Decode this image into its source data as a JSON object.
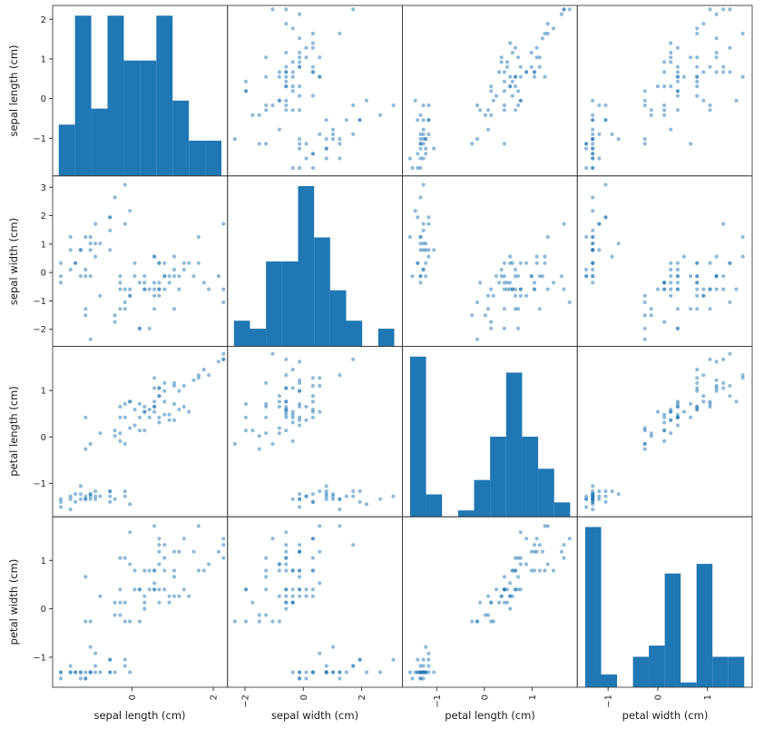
{
  "chart_data": {
    "type": "scatter_matrix",
    "description": "4x4 pairwise scatter-plot matrix of standardized iris features; diagonal cells show histograms of each variable",
    "grid": false,
    "legend": "none",
    "marker_color": "#1f77b4",
    "marker_alpha": 0.5,
    "hist_color": "#1f77b4",
    "spine_color": "#3d3d3d",
    "tick_color": "#262626",
    "background": "#ffffff",
    "variables": [
      {
        "name": "sepal length (cm)",
        "lim": [
          -1.95,
          2.35
        ],
        "yticks": [
          2,
          1,
          0,
          -1
        ],
        "xticks": [
          0,
          2
        ],
        "hist": {
          "range": [
            -1.8,
            2.2
          ],
          "rel_heights": [
            0.32,
            1.0,
            0.42,
            1.0,
            0.72,
            0.72,
            1.0,
            0.47,
            0.22,
            0.22
          ]
        }
      },
      {
        "name": "sepal width (cm)",
        "lim": [
          -2.6,
          3.4
        ],
        "yticks": [
          3,
          2,
          1,
          0,
          -1,
          -2
        ],
        "xticks": [
          -2,
          0,
          2
        ],
        "hist": {
          "range": [
            -2.38,
            3.12
          ],
          "rel_heights": [
            0.16,
            0.11,
            0.53,
            0.53,
            1.0,
            0.68,
            0.35,
            0.16,
            0.0,
            0.11
          ]
        }
      },
      {
        "name": "petal length (cm)",
        "lim": [
          -1.72,
          1.95
        ],
        "yticks": [
          1,
          0,
          -1
        ],
        "xticks": [
          -1,
          0,
          1
        ],
        "hist": {
          "range": [
            -1.56,
            1.8
          ],
          "rel_heights": [
            1.0,
            0.14,
            0.0,
            0.04,
            0.23,
            0.5,
            0.9,
            0.5,
            0.3,
            0.09
          ]
        }
      },
      {
        "name": "petal width (cm)",
        "lim": [
          -1.62,
          1.9
        ],
        "yticks": [
          1,
          0,
          -1
        ],
        "xticks": [
          -1,
          0,
          1
        ],
        "hist": {
          "range": [
            -1.46,
            1.74
          ],
          "rel_heights": [
            1.0,
            0.08,
            0.0,
            0.19,
            0.26,
            0.71,
            0.03,
            0.77,
            0.19,
            0.19
          ]
        }
      }
    ],
    "points": [
      [
        -0.9,
        1.02,
        -1.34,
        -1.31
      ],
      [
        -1.14,
        -0.13,
        -1.34,
        -1.31
      ],
      [
        -1.39,
        0.33,
        -1.4,
        -1.31
      ],
      [
        -1.51,
        0.1,
        -1.28,
        -1.31
      ],
      [
        -1.02,
        1.25,
        -1.34,
        -1.31
      ],
      [
        -0.54,
        1.94,
        -1.17,
        -1.05
      ],
      [
        -1.51,
        0.79,
        -1.34,
        -1.18
      ],
      [
        -1.02,
        0.79,
        -1.28,
        -1.31
      ],
      [
        -1.75,
        -0.36,
        -1.34,
        -1.31
      ],
      [
        -1.14,
        0.1,
        -1.28,
        -1.44
      ],
      [
        -0.54,
        1.48,
        -1.28,
        -1.31
      ],
      [
        -1.26,
        0.79,
        -1.23,
        -1.31
      ],
      [
        -1.26,
        -0.13,
        -1.34,
        -1.44
      ],
      [
        -1.75,
        -0.13,
        -1.51,
        -1.44
      ],
      [
        -0.05,
        2.17,
        -1.45,
        -1.31
      ],
      [
        -0.17,
        3.09,
        -1.28,
        -1.05
      ],
      [
        -0.54,
        1.94,
        -1.4,
        -1.05
      ],
      [
        -0.17,
        1.71,
        -1.17,
        -1.18
      ],
      [
        -0.9,
        1.71,
        -1.28,
        -1.18
      ],
      [
        -0.54,
        0.79,
        -1.17,
        -1.31
      ],
      [
        -1.51,
        1.25,
        -1.56,
        -1.31
      ],
      [
        -0.9,
        0.56,
        -1.17,
        -0.92
      ],
      [
        -1.26,
        0.79,
        -1.06,
        -1.31
      ],
      [
        -1.02,
        -0.13,
        -1.23,
        -1.31
      ],
      [
        -0.78,
        1.02,
        -1.28,
        -1.31
      ],
      [
        -1.39,
        0.33,
        -1.23,
        -1.31
      ],
      [
        -0.42,
        2.64,
        -1.34,
        -1.31
      ],
      [
        -1.14,
        1.25,
        -1.34,
        -1.44
      ],
      [
        -1.75,
        0.33,
        -1.4,
        -1.31
      ],
      [
        -1.02,
        1.02,
        -1.23,
        -0.79
      ],
      [
        1.4,
        0.33,
        0.54,
        0.26
      ],
      [
        0.67,
        0.33,
        0.42,
        0.4
      ],
      [
        1.28,
        0.1,
        0.65,
        0.4
      ],
      [
        -0.42,
        -1.74,
        0.14,
        0.13
      ],
      [
        0.8,
        -0.59,
        0.48,
        0.4
      ],
      [
        -0.17,
        -0.59,
        0.42,
        0.13
      ],
      [
        0.55,
        0.56,
        0.54,
        0.53
      ],
      [
        -1.14,
        -1.51,
        -0.26,
        -0.26
      ],
      [
        0.92,
        -0.36,
        0.48,
        0.13
      ],
      [
        -0.78,
        -0.82,
        0.08,
        0.26
      ],
      [
        -1.02,
        -2.35,
        -0.15,
        -0.26
      ],
      [
        0.07,
        -0.13,
        0.25,
        0.4
      ],
      [
        0.19,
        -1.97,
        0.14,
        -0.26
      ],
      [
        0.31,
        -0.36,
        0.54,
        0.26
      ],
      [
        -0.29,
        -0.36,
        -0.09,
        0.13
      ],
      [
        1.04,
        0.1,
        0.36,
        0.26
      ],
      [
        -0.29,
        -0.13,
        0.42,
        0.4
      ],
      [
        -0.05,
        -0.82,
        0.19,
        -0.26
      ],
      [
        0.43,
        -1.97,
        0.42,
        0.4
      ],
      [
        -0.29,
        -1.28,
        0.08,
        -0.13
      ],
      [
        0.07,
        0.33,
        0.59,
        0.79
      ],
      [
        0.31,
        -0.59,
        0.14,
        0.13
      ],
      [
        0.55,
        -1.28,
        0.65,
        0.4
      ],
      [
        0.31,
        -0.59,
        0.54,
        0.0
      ],
      [
        0.67,
        -0.36,
        0.31,
        0.13
      ],
      [
        0.92,
        -0.13,
        0.36,
        0.26
      ],
      [
        1.16,
        -0.59,
        0.59,
        0.26
      ],
      [
        1.04,
        -0.13,
        0.71,
        0.66
      ],
      [
        0.19,
        -0.36,
        0.42,
        0.4
      ],
      [
        -0.17,
        -1.05,
        -0.15,
        -0.26
      ],
      [
        -0.42,
        -1.51,
        0.02,
        -0.13
      ],
      [
        0.55,
        0.56,
        1.27,
        1.71
      ],
      [
        -0.05,
        -0.82,
        0.76,
        0.92
      ],
      [
        1.52,
        -0.13,
        1.22,
        1.18
      ],
      [
        0.55,
        -0.36,
        1.05,
        0.79
      ],
      [
        0.8,
        -0.13,
        1.16,
        1.32
      ],
      [
        2.13,
        -0.13,
        1.62,
        1.18
      ],
      [
        -1.14,
        -1.28,
        0.42,
        0.66
      ],
      [
        1.77,
        -0.36,
        1.45,
        0.79
      ],
      [
        1.04,
        -1.28,
        1.16,
        0.79
      ],
      [
        1.64,
        1.25,
        1.33,
        1.71
      ],
      [
        0.8,
        0.33,
        0.76,
        1.05
      ],
      [
        0.67,
        -0.82,
        0.88,
        0.92
      ],
      [
        1.16,
        -0.13,
        0.99,
        1.18
      ],
      [
        -0.17,
        -1.28,
        0.71,
        1.05
      ],
      [
        -0.05,
        -0.59,
        0.76,
        1.58
      ],
      [
        0.67,
        0.33,
        0.88,
        1.45
      ],
      [
        0.8,
        -0.13,
        0.99,
        0.79
      ],
      [
        2.25,
        1.71,
        1.67,
        1.32
      ],
      [
        2.25,
        -1.05,
        1.79,
        1.45
      ],
      [
        0.19,
        -1.97,
        0.71,
        0.4
      ],
      [
        1.28,
        0.33,
        1.1,
        1.45
      ],
      [
        -0.29,
        -0.59,
        0.65,
        1.05
      ],
      [
        2.25,
        -0.59,
        1.67,
        1.05
      ],
      [
        0.55,
        -0.82,
        0.65,
        0.79
      ],
      [
        1.04,
        0.56,
        1.1,
        1.18
      ],
      [
        1.64,
        0.33,
        1.27,
        0.79
      ],
      [
        0.43,
        -0.59,
        0.59,
        0.79
      ],
      [
        0.31,
        -0.13,
        0.65,
        0.79
      ],
      [
        0.67,
        -0.59,
        1.05,
        1.18
      ],
      [
        1.89,
        -0.59,
        1.33,
        0.92
      ],
      [
        0.67,
        -0.59,
        1.05,
        1.32
      ],
      [
        0.55,
        -0.59,
        0.76,
        0.4
      ]
    ]
  }
}
